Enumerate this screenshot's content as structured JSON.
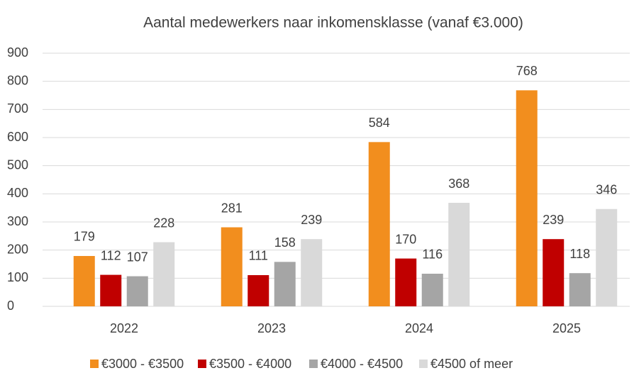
{
  "chart_data": {
    "type": "bar",
    "title": "Aantal medewerkers naar inkomensklasse (vanaf €3.000)",
    "categories": [
      "2022",
      "2023",
      "2024",
      "2025"
    ],
    "series": [
      {
        "name": "€3000 - €3500",
        "color": "#f28e1e",
        "values": [
          179,
          281,
          584,
          768
        ]
      },
      {
        "name": "€3500 - €4000",
        "color": "#c00000",
        "values": [
          112,
          111,
          170,
          239
        ]
      },
      {
        "name": "€4000 - €4500",
        "color": "#a5a5a5",
        "values": [
          107,
          158,
          116,
          118
        ]
      },
      {
        "name": "€4500 of meer",
        "color": "#d9d9d9",
        "values": [
          228,
          239,
          368,
          346
        ]
      }
    ],
    "ylim": [
      0,
      900
    ],
    "yticks": [
      0,
      100,
      200,
      300,
      400,
      500,
      600,
      700,
      800,
      900
    ],
    "grid": true,
    "legend": "bottom"
  }
}
